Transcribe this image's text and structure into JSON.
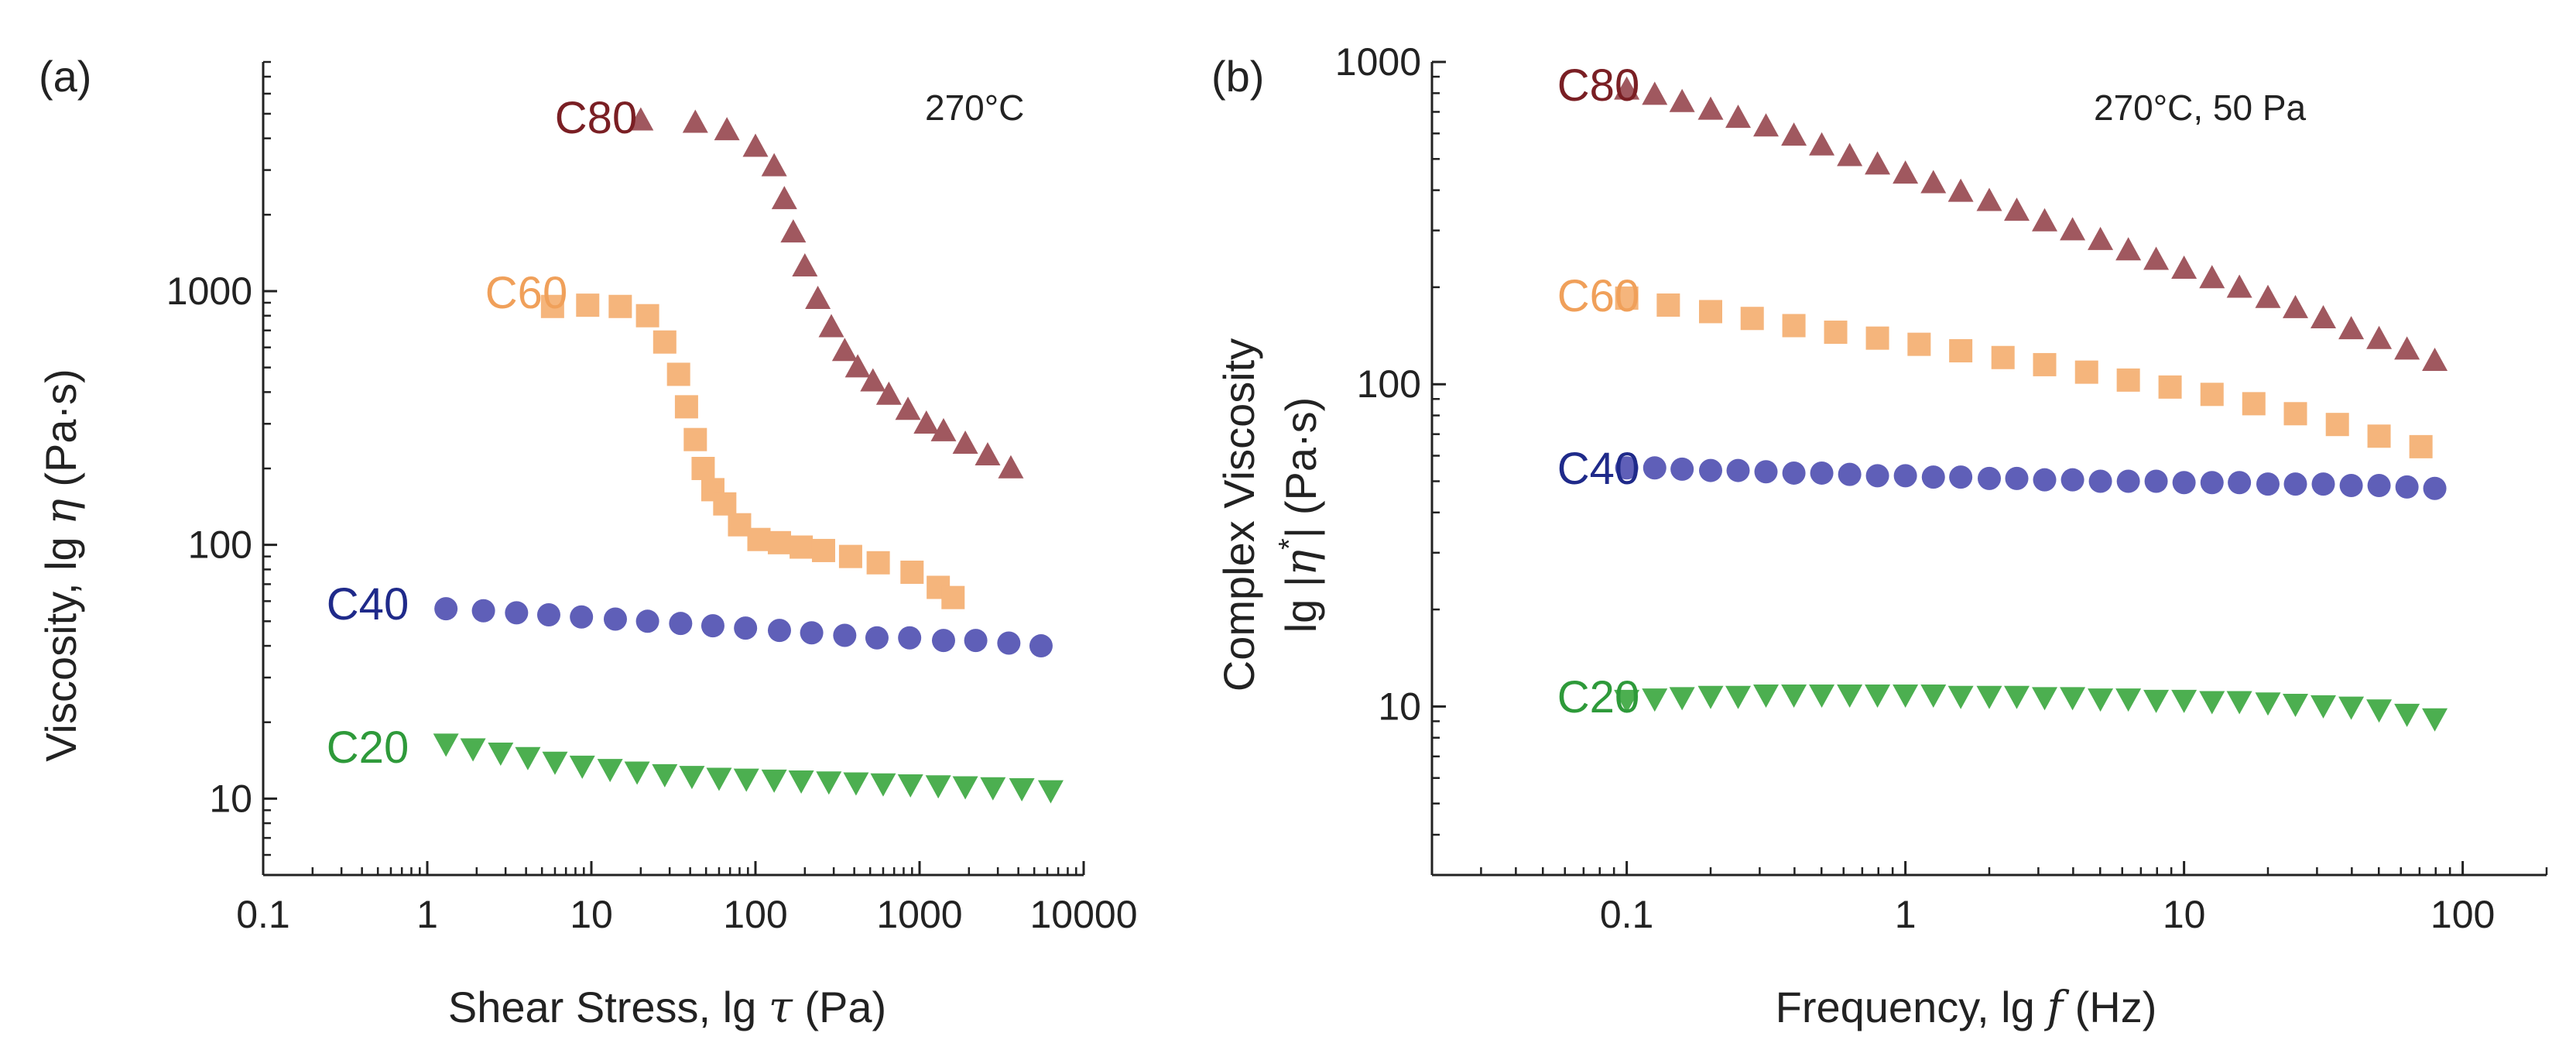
{
  "chart_data": [
    {
      "type": "scatter",
      "panel": "(a)",
      "annotation": "270°C",
      "xlabel_pre": "Shear Stress, lg ",
      "xlabel_sym": "τ",
      "xlabel_post": " (Pa)",
      "ylabel_pre": "Viscosity, lg ",
      "ylabel_sym": "η",
      "ylabel_post": " (Pa·s)",
      "xscale": "log",
      "yscale": "log",
      "xlim": [
        0.1,
        10000
      ],
      "ylim": [
        5,
        8000
      ],
      "xticks": [
        0.1,
        1,
        10,
        100,
        1000,
        10000
      ],
      "xtick_labels": [
        "0.1",
        "1",
        "10",
        "100",
        "1000",
        "10000"
      ],
      "yticks": [
        10,
        100,
        1000
      ],
      "ytick_labels": [
        "10",
        "100",
        "1000"
      ],
      "series": [
        {
          "name": "C80",
          "marker": "triangle-up",
          "color": "#a0585f",
          "label_color": "#7a1f24",
          "x": [
            20,
            43,
            67,
            100,
            130,
            150,
            170,
            200,
            240,
            290,
            350,
            420,
            520,
            650,
            850,
            1100,
            1400,
            1900,
            2600,
            3600
          ],
          "y": [
            4700,
            4600,
            4300,
            3700,
            3100,
            2300,
            1700,
            1250,
            930,
            720,
            580,
            500,
            440,
            390,
            340,
            300,
            280,
            250,
            225,
            200
          ]
        },
        {
          "name": "C60",
          "marker": "square",
          "color": "#f5b57c",
          "label_color": "#f0a05a",
          "x": [
            5.8,
            9.5,
            15,
            22,
            28,
            34,
            38,
            43,
            48,
            55,
            65,
            80,
            105,
            140,
            190,
            260,
            380,
            560,
            900,
            1300,
            1600
          ],
          "y": [
            870,
            880,
            870,
            800,
            630,
            470,
            350,
            260,
            200,
            165,
            145,
            120,
            105,
            102,
            98,
            95,
            90,
            85,
            78,
            68,
            62
          ]
        },
        {
          "name": "C40",
          "marker": "circle",
          "color": "#5f5fb8",
          "label_color": "#1f2a8a",
          "x": [
            1.3,
            2.2,
            3.5,
            5.5,
            8.7,
            14,
            22,
            35,
            55,
            87,
            140,
            220,
            350,
            550,
            870,
            1400,
            2200,
            3500,
            5500
          ],
          "y": [
            56,
            55,
            54,
            53,
            52,
            51,
            50,
            49,
            48,
            47,
            46,
            45,
            44,
            43,
            43,
            42,
            42,
            41,
            40
          ]
        },
        {
          "name": "C20",
          "marker": "triangle-down",
          "color": "#4caf50",
          "label_color": "#2e9a3a",
          "x": [
            1.3,
            1.9,
            2.8,
            4.1,
            6,
            8.8,
            13,
            19,
            28,
            41,
            60,
            88,
            130,
            190,
            280,
            410,
            600,
            880,
            1300,
            1900,
            2800,
            4200,
            6300
          ],
          "y": [
            16.5,
            15.8,
            15.2,
            14.6,
            14,
            13.5,
            13.1,
            12.8,
            12.5,
            12.3,
            12.1,
            12,
            11.9,
            11.8,
            11.7,
            11.6,
            11.5,
            11.4,
            11.3,
            11.2,
            11.1,
            11,
            10.8
          ]
        }
      ]
    },
    {
      "type": "scatter",
      "panel": "(b)",
      "annotation": "270°C, 50 Pa",
      "xlabel_pre": "Frequency, lg ",
      "xlabel_sym": "f",
      "xlabel_post": " (Hz)",
      "ylabel_line1": "Complex Viscosity",
      "ylabel_pre": "lg |",
      "ylabel_sym": "η",
      "ylabel_sup": "*",
      "ylabel_post": "| (Pa·s)",
      "xscale": "log",
      "yscale": "log",
      "xlim": [
        0.02,
        200
      ],
      "ylim": [
        3,
        1000
      ],
      "xticks": [
        0.1,
        1,
        10,
        100
      ],
      "xtick_labels": [
        "0.1",
        "1",
        "10",
        "100"
      ],
      "yticks": [
        10,
        100,
        1000
      ],
      "ytick_labels": [
        "10",
        "100",
        "1000"
      ],
      "series": [
        {
          "name": "C80",
          "marker": "triangle-up",
          "color": "#a0585f",
          "label_color": "#7a1f24",
          "x": [
            0.1,
            0.126,
            0.158,
            0.2,
            0.251,
            0.316,
            0.398,
            0.501,
            0.631,
            0.794,
            1,
            1.26,
            1.58,
            2,
            2.51,
            3.16,
            3.98,
            5.01,
            6.31,
            7.94,
            10,
            12.6,
            15.8,
            20,
            25.1,
            31.6,
            39.8,
            50.1,
            63.1,
            79.4
          ],
          "y": [
            820,
            790,
            750,
            710,
            670,
            630,
            590,
            550,
            510,
            480,
            450,
            420,
            395,
            370,
            345,
            320,
            300,
            280,
            260,
            243,
            228,
            213,
            199,
            185,
            172,
            160,
            148,
            138,
            128,
            118
          ]
        },
        {
          "name": "C60",
          "marker": "square",
          "color": "#f5b57c",
          "label_color": "#f0a05a",
          "x": [
            0.1,
            0.141,
            0.2,
            0.282,
            0.398,
            0.562,
            0.794,
            1.12,
            1.58,
            2.24,
            3.16,
            4.47,
            6.31,
            8.91,
            12.6,
            17.8,
            25.1,
            35.5,
            50.1,
            70.8
          ],
          "y": [
            185,
            176,
            168,
            160,
            152,
            145,
            139,
            133,
            127,
            121,
            115,
            109,
            103,
            98,
            93,
            87,
            81,
            75,
            69,
            64
          ]
        },
        {
          "name": "C40",
          "marker": "circle",
          "color": "#5f5fb8",
          "label_color": "#1f2a8a",
          "x": [
            0.1,
            0.126,
            0.158,
            0.2,
            0.251,
            0.316,
            0.398,
            0.501,
            0.631,
            0.794,
            1,
            1.26,
            1.58,
            2,
            2.51,
            3.16,
            3.98,
            5.01,
            6.31,
            7.94,
            10,
            12.6,
            15.8,
            20,
            25.1,
            31.6,
            39.8,
            50.1,
            63.1,
            79.4
          ],
          "y": [
            55,
            55,
            54.5,
            54,
            54,
            53.5,
            53,
            53,
            52.5,
            52,
            52,
            51.5,
            51.5,
            51,
            51,
            50.5,
            50.5,
            50,
            50,
            50,
            49.5,
            49.5,
            49.5,
            49,
            49,
            49,
            48.5,
            48.5,
            48,
            47.5
          ]
        },
        {
          "name": "C20",
          "marker": "triangle-down",
          "color": "#4caf50",
          "label_color": "#2e9a3a",
          "x": [
            0.1,
            0.126,
            0.158,
            0.2,
            0.251,
            0.316,
            0.398,
            0.501,
            0.631,
            0.794,
            1,
            1.26,
            1.58,
            2,
            2.51,
            3.16,
            3.98,
            5.01,
            6.31,
            7.94,
            10,
            12.6,
            15.8,
            20,
            25.1,
            31.6,
            39.8,
            50.1,
            63.1,
            79.4
          ],
          "y": [
            10.5,
            10.6,
            10.7,
            10.8,
            10.8,
            10.9,
            10.9,
            10.9,
            10.9,
            10.9,
            10.9,
            10.9,
            10.8,
            10.8,
            10.8,
            10.7,
            10.7,
            10.6,
            10.6,
            10.5,
            10.5,
            10.4,
            10.4,
            10.3,
            10.2,
            10.1,
            10,
            9.8,
            9.5,
            9.2
          ]
        }
      ]
    }
  ]
}
